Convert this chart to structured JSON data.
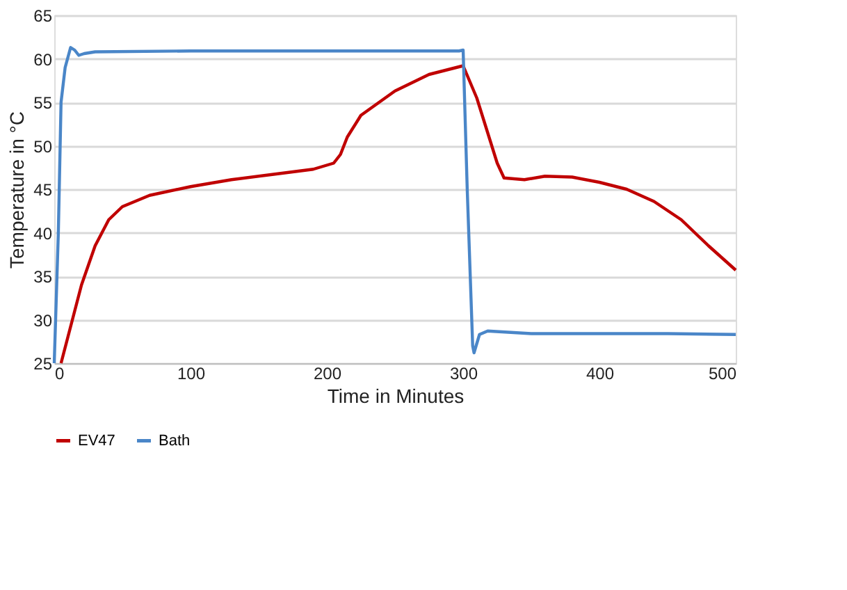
{
  "chart_data": {
    "type": "line",
    "xlabel": "Time in Minutes",
    "ylabel": "Temperature in °C",
    "xlim": [
      0,
      500
    ],
    "xticks": [
      0,
      100,
      200,
      300,
      400,
      500
    ],
    "ylim": [
      25,
      65
    ],
    "yticks": [
      25,
      30,
      35,
      40,
      45,
      50,
      55,
      60,
      65
    ],
    "grid": "y",
    "legend": "bottom",
    "marker": "none",
    "line_style": "solid",
    "series": [
      {
        "name": "EV47",
        "color": "#c00000",
        "x": [
          5,
          10,
          20,
          30,
          40,
          50,
          70,
          100,
          130,
          160,
          190,
          205,
          210,
          215,
          225,
          250,
          275,
          295,
          300,
          310,
          325,
          330,
          345,
          360,
          380,
          400,
          420,
          440,
          460,
          480,
          500
        ],
        "values": [
          25,
          28,
          34,
          38.5,
          41.5,
          43,
          44.3,
          45.3,
          46.1,
          46.7,
          47.3,
          48,
          49,
          51,
          53.5,
          56.3,
          58.2,
          59,
          59.2,
          55.5,
          48,
          46.3,
          46.1,
          46.5,
          46.4,
          45.8,
          45,
          43.6,
          41.5,
          38.5,
          35.7
        ]
      },
      {
        "name": "Bath",
        "color": "#4a86c8",
        "x": [
          0,
          3,
          5,
          8,
          12,
          15,
          18,
          22,
          30,
          100,
          200,
          297,
          300,
          303,
          307,
          308,
          312,
          318,
          350,
          400,
          450,
          500
        ],
        "values": [
          25,
          40,
          55,
          59,
          61.3,
          61,
          60.4,
          60.6,
          60.8,
          60.9,
          60.9,
          60.9,
          61,
          45,
          27,
          26.2,
          28.3,
          28.7,
          28.4,
          28.4,
          28.4,
          28.3
        ]
      }
    ]
  }
}
